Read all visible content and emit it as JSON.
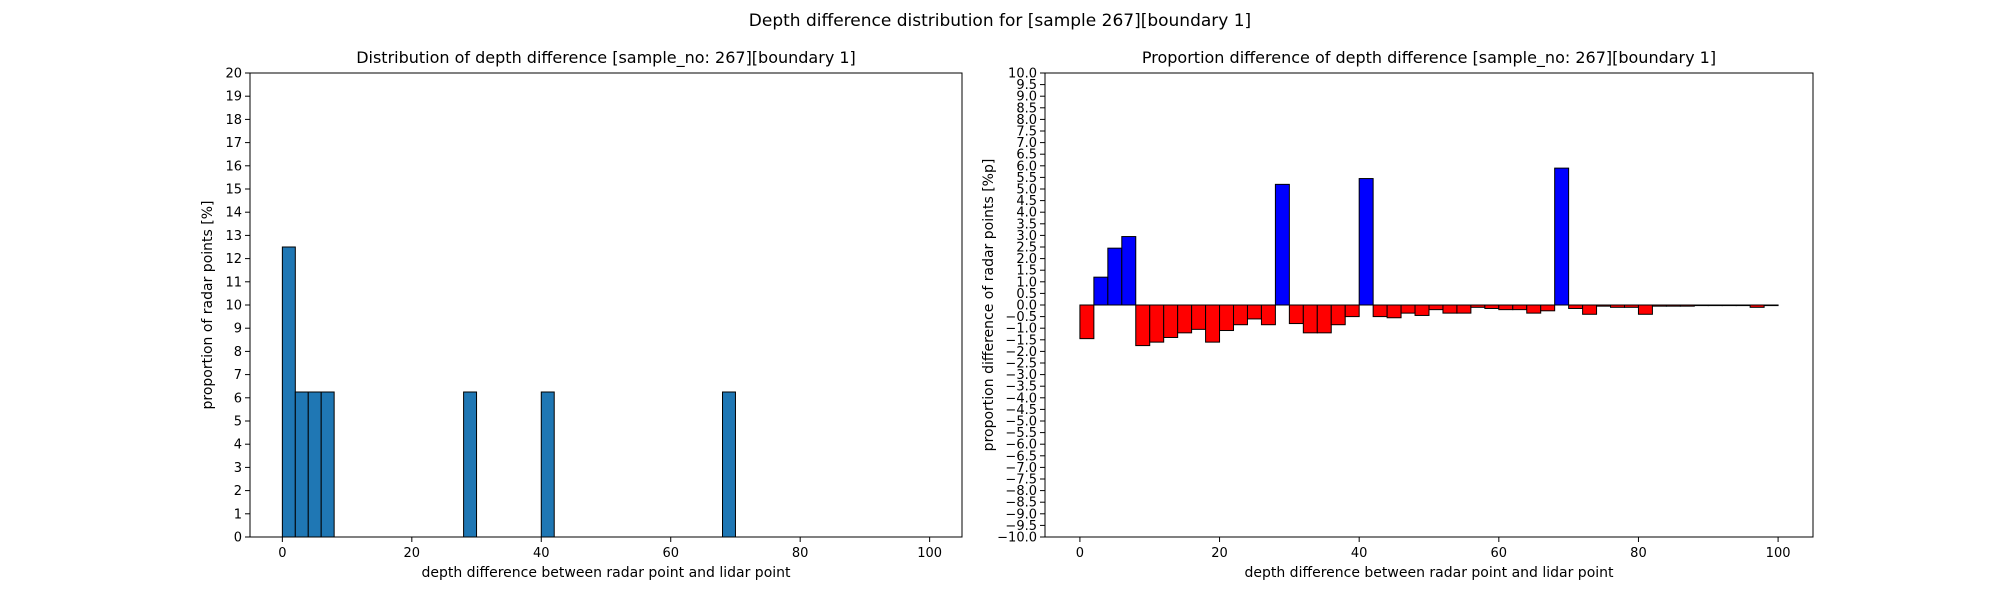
{
  "figure": {
    "suptitle": "Depth difference distribution for [sample 267][boundary 1]"
  },
  "chart_data": [
    {
      "type": "bar",
      "title": "Distribution of depth difference [sample_no: 267][boundary 1]",
      "xlabel": "depth difference between radar point and lidar point",
      "ylabel": "proportion of radar points [%]",
      "xlim": [
        -5,
        105
      ],
      "ylim": [
        0,
        20
      ],
      "xticks": [
        0,
        20,
        40,
        60,
        80,
        100
      ],
      "yticks": [
        0,
        1,
        2,
        3,
        4,
        5,
        6,
        7,
        8,
        9,
        10,
        11,
        12,
        13,
        14,
        15,
        16,
        17,
        18,
        19,
        20
      ],
      "bin_width": 2,
      "grid": false,
      "color": "#1f77b4",
      "edge_color": "#000000",
      "bins": [
        {
          "x": 0,
          "value": 12.5
        },
        {
          "x": 2,
          "value": 6.25
        },
        {
          "x": 4,
          "value": 6.25
        },
        {
          "x": 6,
          "value": 6.25
        },
        {
          "x": 28,
          "value": 6.25
        },
        {
          "x": 40,
          "value": 6.25
        },
        {
          "x": 68,
          "value": 6.25
        }
      ]
    },
    {
      "type": "bar",
      "title": "Proportion difference of depth difference [sample_no: 267][boundary 1]",
      "xlabel": "depth difference between radar point and lidar point",
      "ylabel": "proportion difference of radar points [%p]",
      "xlim": [
        -5,
        105
      ],
      "ylim": [
        -10,
        10
      ],
      "xticks": [
        0,
        20,
        40,
        60,
        80,
        100
      ],
      "yticks": [
        -10.0,
        -9.5,
        -9.0,
        -8.5,
        -8.0,
        -7.5,
        -7.0,
        -6.5,
        -6.0,
        -5.5,
        -5.0,
        -4.5,
        -4.0,
        -3.5,
        -3.0,
        -2.5,
        -2.0,
        -1.5,
        -1.0,
        -0.5,
        0.0,
        0.5,
        1.0,
        1.5,
        2.0,
        2.5,
        3.0,
        3.5,
        4.0,
        4.5,
        5.0,
        5.5,
        6.0,
        6.5,
        7.0,
        7.5,
        8.0,
        8.5,
        9.0,
        9.5,
        10.0
      ],
      "bin_width": 2,
      "grid": false,
      "positive_color": "#0000ff",
      "negative_color": "#ff0000",
      "edge_color": "#000000",
      "bins": [
        {
          "x": 0,
          "value": -1.45
        },
        {
          "x": 2,
          "value": 1.2
        },
        {
          "x": 4,
          "value": 2.45
        },
        {
          "x": 6,
          "value": 2.95
        },
        {
          "x": 8,
          "value": -1.75
        },
        {
          "x": 10,
          "value": -1.6
        },
        {
          "x": 12,
          "value": -1.4
        },
        {
          "x": 14,
          "value": -1.2
        },
        {
          "x": 16,
          "value": -1.05
        },
        {
          "x": 18,
          "value": -1.6
        },
        {
          "x": 20,
          "value": -1.1
        },
        {
          "x": 22,
          "value": -0.85
        },
        {
          "x": 24,
          "value": -0.6
        },
        {
          "x": 26,
          "value": -0.85
        },
        {
          "x": 28,
          "value": 5.2
        },
        {
          "x": 30,
          "value": -0.8
        },
        {
          "x": 32,
          "value": -1.2
        },
        {
          "x": 34,
          "value": -1.2
        },
        {
          "x": 36,
          "value": -0.85
        },
        {
          "x": 38,
          "value": -0.5
        },
        {
          "x": 40,
          "value": 5.45
        },
        {
          "x": 42,
          "value": -0.5
        },
        {
          "x": 44,
          "value": -0.55
        },
        {
          "x": 46,
          "value": -0.35
        },
        {
          "x": 48,
          "value": -0.45
        },
        {
          "x": 50,
          "value": -0.2
        },
        {
          "x": 52,
          "value": -0.35
        },
        {
          "x": 54,
          "value": -0.35
        },
        {
          "x": 56,
          "value": -0.1
        },
        {
          "x": 58,
          "value": -0.15
        },
        {
          "x": 60,
          "value": -0.2
        },
        {
          "x": 62,
          "value": -0.2
        },
        {
          "x": 64,
          "value": -0.35
        },
        {
          "x": 66,
          "value": -0.25
        },
        {
          "x": 68,
          "value": 5.9
        },
        {
          "x": 70,
          "value": -0.15
        },
        {
          "x": 72,
          "value": -0.4
        },
        {
          "x": 74,
          "value": -0.05
        },
        {
          "x": 76,
          "value": -0.1
        },
        {
          "x": 78,
          "value": -0.1
        },
        {
          "x": 80,
          "value": -0.4
        },
        {
          "x": 82,
          "value": -0.05
        },
        {
          "x": 84,
          "value": -0.05
        },
        {
          "x": 86,
          "value": -0.05
        },
        {
          "x": 88,
          "value": -0.02
        },
        {
          "x": 90,
          "value": -0.02
        },
        {
          "x": 92,
          "value": -0.02
        },
        {
          "x": 94,
          "value": -0.02
        },
        {
          "x": 96,
          "value": -0.1
        },
        {
          "x": 98,
          "value": -0.02
        }
      ]
    }
  ]
}
